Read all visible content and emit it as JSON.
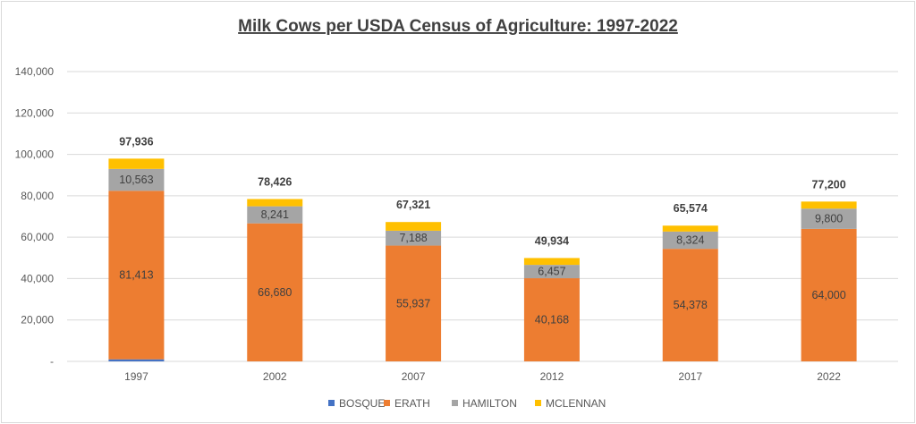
{
  "chart_data": {
    "type": "bar",
    "stacked": true,
    "title": "Milk Cows per USDA Census of Agriculture: 1997-2022",
    "xlabel": "",
    "ylabel": "",
    "ylim": [
      0,
      140000
    ],
    "yticks": [
      0,
      20000,
      40000,
      60000,
      80000,
      100000,
      120000,
      140000
    ],
    "ytick_labels": [
      "-",
      "20,000",
      "40,000",
      "60,000",
      "80,000",
      "100,000",
      "120,000",
      "140,000"
    ],
    "grid": true,
    "legend_position": "bottom",
    "categories": [
      "1997",
      "2002",
      "2007",
      "2012",
      "2017",
      "2022"
    ],
    "series": [
      {
        "name": "BOSQUE",
        "color": "#4472c4",
        "values": [
          1000,
          0,
          0,
          0,
          0,
          0
        ]
      },
      {
        "name": "ERATH",
        "color": "#ed7d31",
        "values": [
          81413,
          66680,
          55937,
          40168,
          54378,
          64000
        ],
        "labels": [
          "81,413",
          "66,680",
          "55,937",
          "40,168",
          "54,378",
          "64,000"
        ]
      },
      {
        "name": "HAMILTON",
        "color": "#a5a5a5",
        "values": [
          10563,
          8241,
          7188,
          6457,
          8324,
          9800
        ],
        "labels": [
          "10,563",
          "8,241",
          "7,188",
          "6,457",
          "8,324",
          "9,800"
        ]
      },
      {
        "name": "MCLENNAN",
        "color": "#ffc000",
        "values": [
          4960,
          3505,
          4196,
          3309,
          2872,
          3400
        ]
      }
    ],
    "totals": [
      97936,
      78426,
      67321,
      49934,
      65574,
      77200
    ],
    "total_labels": [
      "97,936",
      "78,426",
      "67,321",
      "49,934",
      "65,574",
      "77,200"
    ]
  }
}
